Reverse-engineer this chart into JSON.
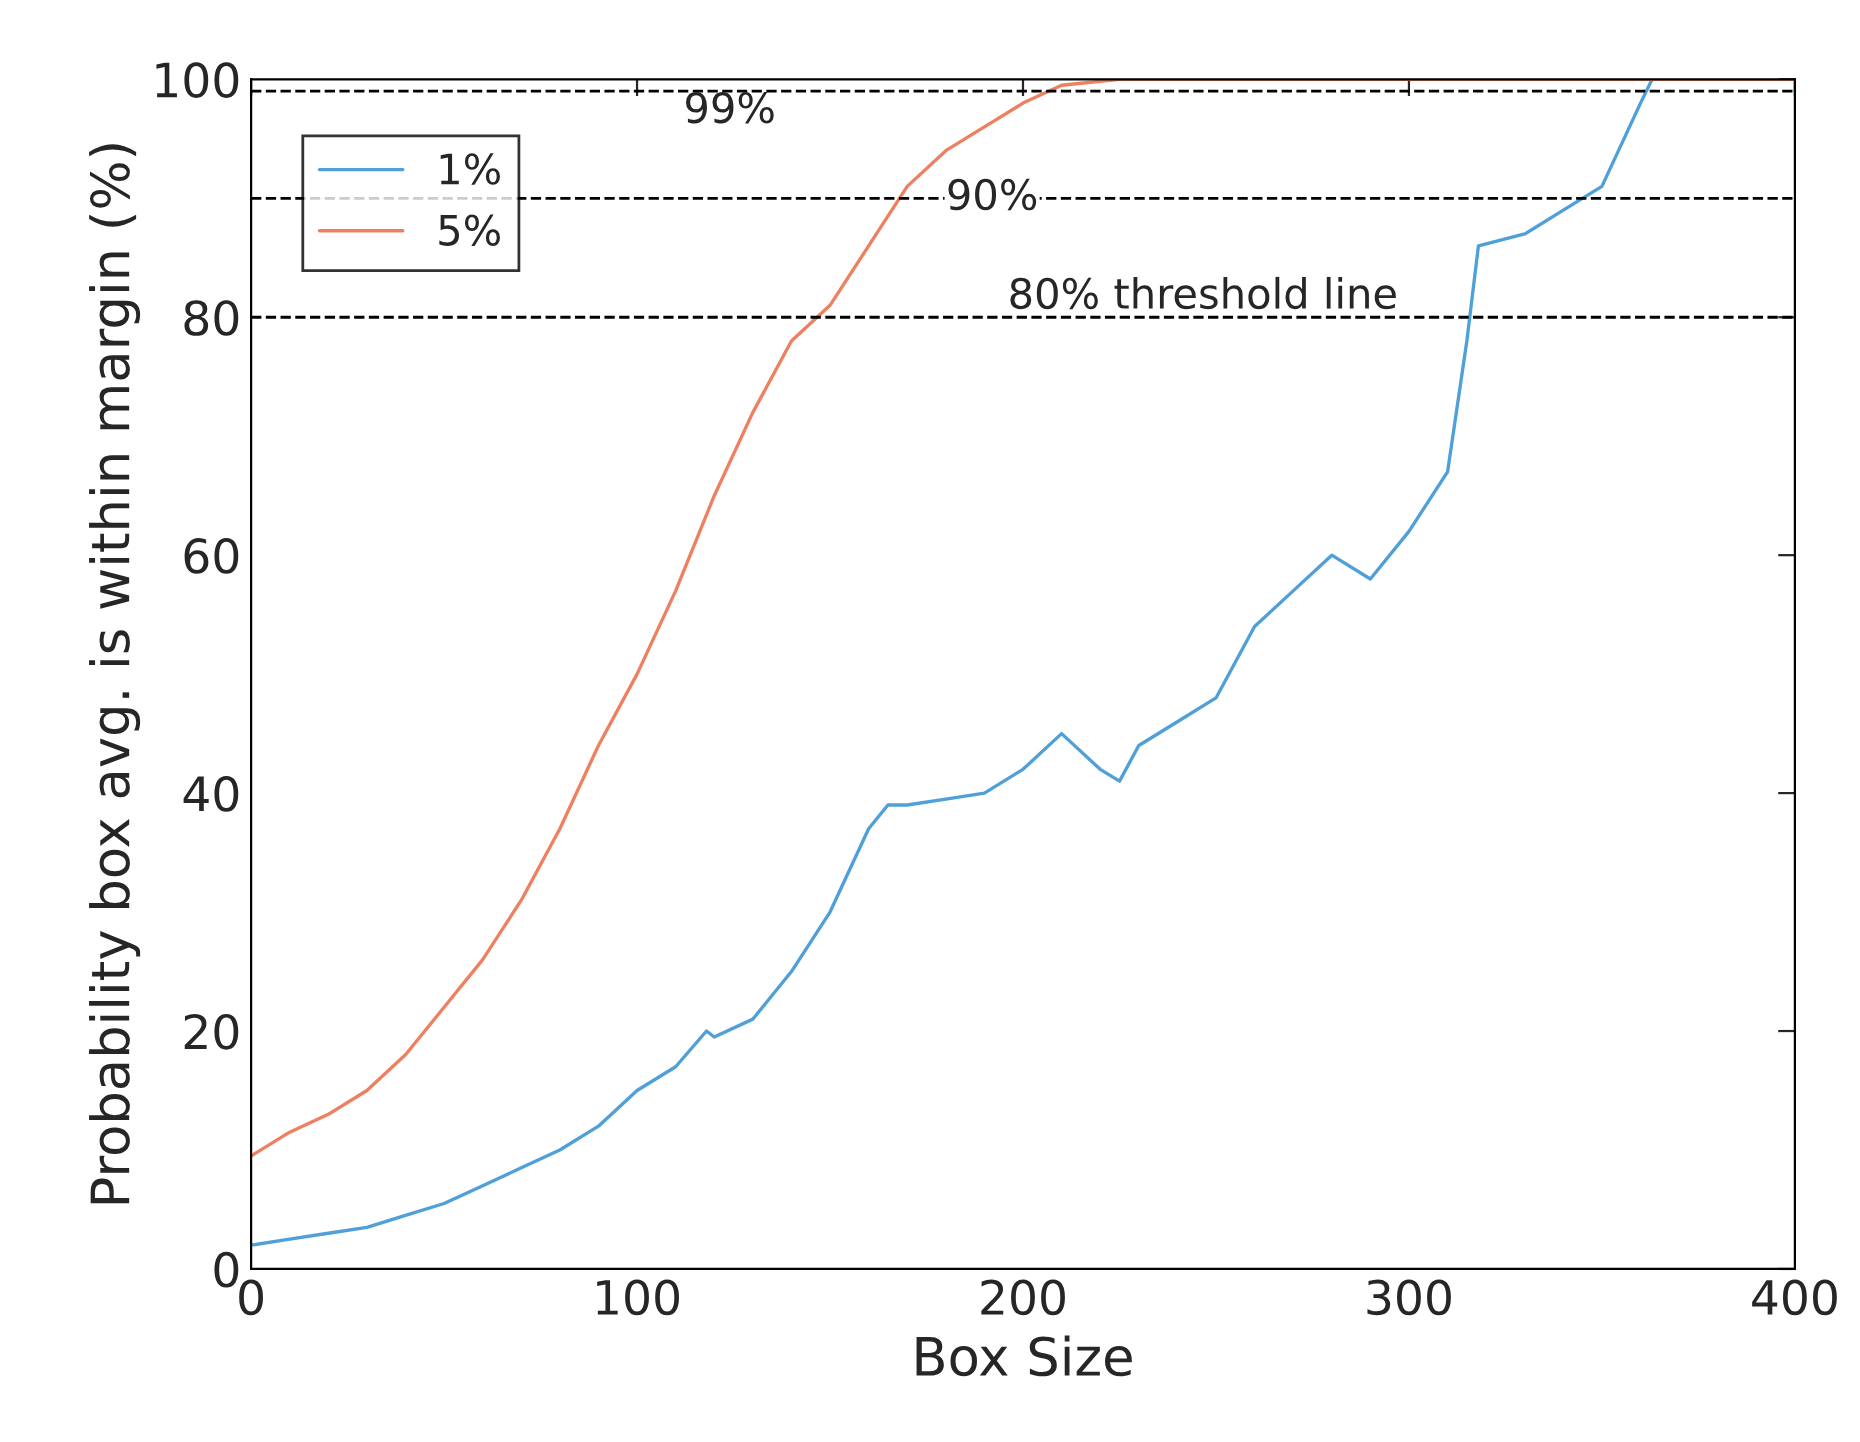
{
  "chart_data": {
    "type": "line",
    "xlabel": "Box Size",
    "ylabel": "Probability box avg. is within margin (%)",
    "xlim": [
      0,
      400
    ],
    "xticks": [
      0,
      100,
      200,
      300,
      400
    ],
    "ylim": [
      0,
      100
    ],
    "yticks": [
      0,
      20,
      40,
      60,
      80,
      100
    ],
    "grid": false,
    "legend": "top left",
    "line_style": "solid",
    "ref_lines": [
      {
        "axis": "y",
        "value": 99,
        "label": "99%",
        "color": "#000000",
        "line_style": "dashed"
      },
      {
        "axis": "y",
        "value": 90,
        "label": "90%",
        "color": "#000000",
        "line_style": "dashed"
      },
      {
        "axis": "y",
        "value": 80,
        "label": "80% threshold line",
        "color": "#000000",
        "line_style": "dashed"
      }
    ],
    "series": [
      {
        "name": "1%",
        "color": "#4f9fd9",
        "x": [
          0,
          10,
          20,
          30,
          40,
          50,
          60,
          70,
          80,
          90,
          100,
          110,
          118,
          120,
          130,
          140,
          150,
          160,
          165,
          170,
          180,
          190,
          200,
          210,
          220,
          225,
          230,
          240,
          250,
          260,
          270,
          280,
          290,
          300,
          310,
          315,
          318,
          330,
          340,
          350,
          360,
          363,
          400
        ],
        "values": [
          2,
          2.5,
          3,
          3.5,
          4.5,
          5.5,
          7,
          8.5,
          10,
          12,
          15,
          17,
          20,
          19.5,
          21,
          25,
          30,
          37,
          39,
          39,
          39.5,
          40,
          42,
          45,
          42,
          41,
          44,
          46,
          48,
          54,
          57,
          60,
          58,
          62,
          67,
          78,
          86,
          87,
          89,
          91,
          98,
          100,
          100
        ]
      },
      {
        "name": "5%",
        "color": "#ee8060",
        "x": [
          0,
          10,
          20,
          30,
          40,
          50,
          60,
          70,
          80,
          90,
          100,
          110,
          120,
          130,
          140,
          150,
          160,
          170,
          180,
          190,
          200,
          210,
          225,
          400
        ],
        "values": [
          9.5,
          11.5,
          13,
          15,
          18,
          22,
          26,
          31,
          37,
          44,
          50,
          57,
          65,
          72,
          78,
          81,
          86,
          91,
          94,
          96,
          98,
          99.5,
          100,
          100
        ]
      }
    ]
  }
}
